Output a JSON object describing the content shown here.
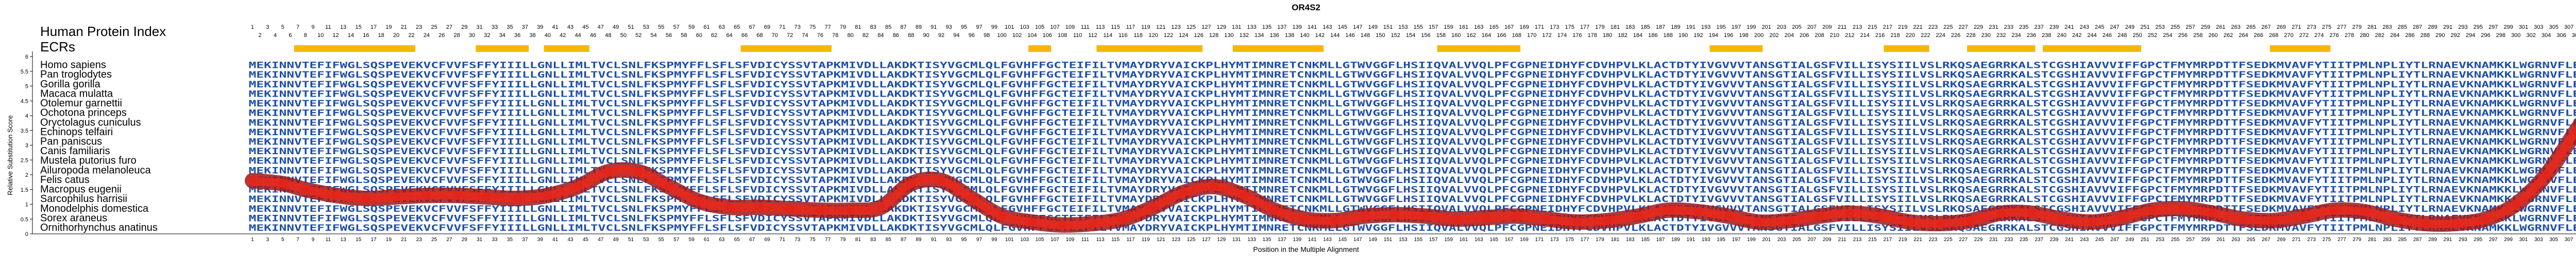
{
  "chart_data": {
    "type": "line",
    "title": "OR4S2",
    "xlabel": "Position in the Multiple Alignment",
    "ylabel": "Relative Substitution Score",
    "ylim": [
      0,
      6
    ],
    "yticks": [
      0,
      0.5,
      1,
      1.5,
      2,
      2.5,
      3,
      3.5,
      4,
      4.5,
      5,
      5.5,
      6
    ],
    "xlim": [
      1,
      311
    ],
    "index_label": "Human Protein Index",
    "ecr_label": "ECRs",
    "ecr_segments": [
      [
        7,
        22
      ],
      [
        31,
        37
      ],
      [
        40,
        45
      ],
      [
        66,
        77
      ],
      [
        104,
        106
      ],
      [
        113,
        126
      ],
      [
        131,
        142
      ],
      [
        158,
        168
      ],
      [
        194,
        200
      ],
      [
        217,
        222
      ],
      [
        228,
        236
      ],
      [
        238,
        250
      ],
      [
        268,
        275
      ]
    ],
    "species": [
      "Homo sapiens",
      "Pan troglodytes",
      "Gorilla gorilla",
      "Macaca mulatta",
      "Otolemur garnettii",
      "Ochotona princeps",
      "Oryctolagus cuniculus",
      "Echinops telfairi",
      "Pan paniscus",
      "Canis familiaris",
      "Mustela putorius furo",
      "Ailuropoda melanoleuca",
      "Felis catus",
      "Macropus eugenii",
      "Sarcophilus harrisii",
      "Monodelphis domestica",
      "Sorex araneus",
      "Ornithorhynchus anatinus"
    ],
    "human_sequence": "MEKINNVTEFIFWGLSQSPEVEKVCFVVFSFFYIIILLGNLLIMLTVCLSNLFKSPMYFFLSFLSFVDICYSSVTAPKMIVDLLAKDKTISYVGCMLQLFGVHFFGCTEIFILTVMAYDRYVAICKPLHYMTIMNRETCNKMLLGTWVGGFLHSIIQVALVVQLPFCGPNEIDHYFCDVHPVLKLACTDTYIVGVVVTANSGTIALGSFVILLISYSIILVSLRKQSAEGRRKALSTCGSHIAVVVIFFGPCTFMYMRPDTTFSEDKMVAVFYTIITPMLNPLIYTLRNAEVKNAMKKLWGRNVFLEGKK",
    "series": [
      {
        "x": [
          1,
          5,
          8,
          12,
          16,
          20,
          24,
          28,
          32,
          36,
          40,
          44,
          48,
          52,
          56,
          60,
          64,
          68,
          72,
          76,
          80,
          84,
          88,
          92,
          96,
          100,
          104,
          108,
          112,
          116,
          120,
          124,
          128,
          132,
          136,
          140,
          144,
          148,
          152,
          156,
          160,
          164,
          168,
          172,
          176,
          180,
          184,
          188,
          192,
          196,
          200,
          204,
          208,
          212,
          216,
          220,
          224,
          228,
          232,
          236,
          240,
          244,
          248,
          252,
          256,
          260,
          264,
          268,
          272,
          276,
          280,
          284,
          288,
          292,
          296,
          300,
          304,
          308,
          311
        ],
        "y": [
          1.8,
          1.7,
          1.5,
          1.3,
          1.2,
          1.25,
          1.3,
          1.3,
          1.25,
          1.2,
          1.3,
          1.6,
          2.1,
          2.1,
          1.6,
          1.1,
          0.9,
          0.9,
          0.85,
          0.8,
          0.8,
          0.9,
          1.7,
          1.8,
          1.2,
          0.6,
          0.4,
          0.3,
          0.35,
          0.5,
          0.9,
          1.4,
          1.6,
          1.3,
          0.8,
          0.5,
          0.45,
          0.6,
          0.65,
          0.6,
          0.5,
          0.55,
          0.6,
          0.5,
          0.4,
          0.45,
          0.6,
          0.8,
          0.75,
          0.6,
          0.4,
          0.45,
          0.6,
          0.7,
          0.6,
          0.4,
          0.35,
          0.45,
          0.7,
          0.7,
          0.5,
          0.4,
          0.55,
          0.8,
          0.85,
          0.7,
          0.5,
          0.45,
          0.6,
          0.8,
          0.75,
          0.5,
          0.35,
          0.35,
          0.5,
          1.0,
          2.0,
          3.5,
          4.6
        ]
      }
    ],
    "grid": false
  }
}
